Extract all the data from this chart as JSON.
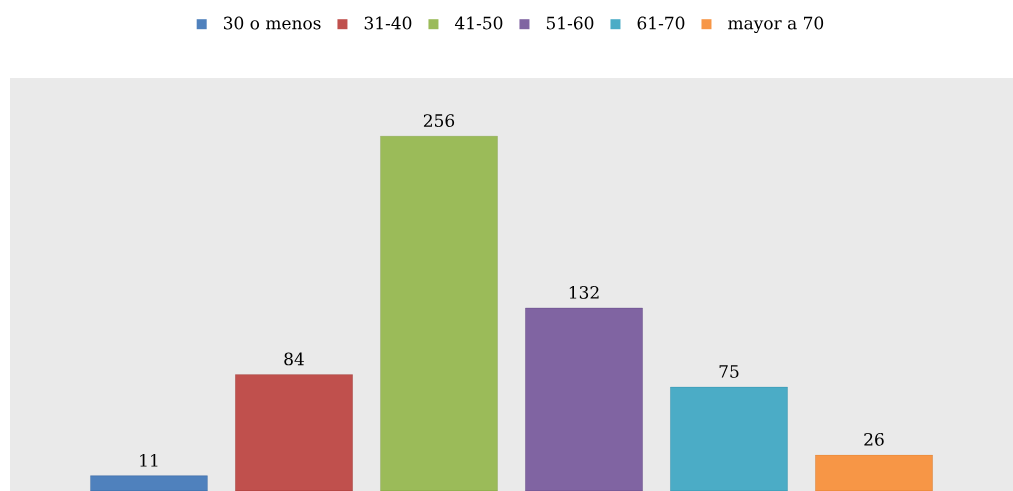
{
  "chart_data": {
    "type": "bar",
    "categories": [
      null
    ],
    "data_labels": true,
    "legend": "top",
    "ylim": [
      0,
      298
    ],
    "series": [
      {
        "name": "30 o menos",
        "color": "#4f81bd",
        "values": [
          11
        ]
      },
      {
        "name": "31-40",
        "color": "#c0504d",
        "values": [
          84
        ]
      },
      {
        "name": "41-50",
        "color": "#9bbb59",
        "values": [
          256
        ]
      },
      {
        "name": "51-60",
        "color": "#8064a2",
        "values": [
          132
        ]
      },
      {
        "name": "61-70",
        "color": "#4bacc6",
        "values": [
          75
        ]
      },
      {
        "name": "mayor a 70",
        "color": "#f79646",
        "values": [
          26
        ]
      }
    ]
  }
}
